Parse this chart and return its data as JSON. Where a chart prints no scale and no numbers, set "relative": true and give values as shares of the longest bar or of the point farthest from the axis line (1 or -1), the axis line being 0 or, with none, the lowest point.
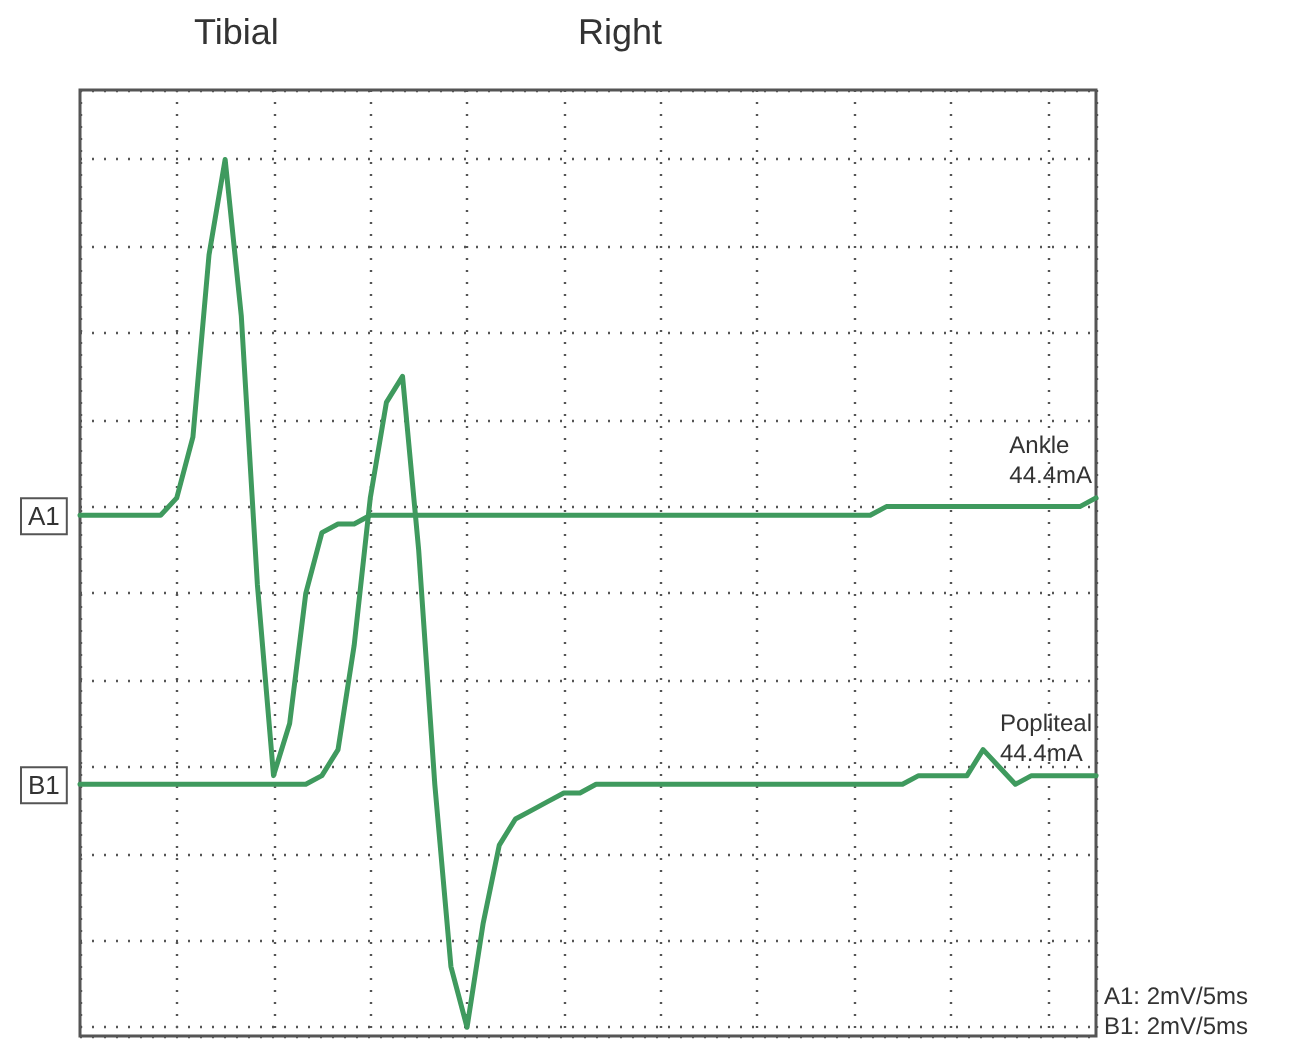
{
  "chart_data": {
    "type": "line",
    "title": "Tibial",
    "subtitle": "Right",
    "relative": true,
    "grid": true,
    "legend": false,
    "marker": "none",
    "line_style": "solid",
    "categories": [
      null,
      null,
      null,
      null,
      null,
      null,
      null,
      null,
      null,
      null,
      null,
      null,
      null,
      null,
      null,
      null,
      null,
      null,
      null,
      null,
      null,
      null,
      null,
      null,
      null,
      null,
      null,
      null,
      null,
      null,
      null,
      null,
      null,
      null,
      null,
      null,
      null,
      null,
      null,
      null,
      null,
      null,
      null,
      null,
      null,
      null,
      null,
      null,
      null,
      null,
      null,
      null,
      null,
      null,
      null,
      null,
      null,
      null,
      null,
      null,
      null,
      null,
      null,
      null
    ],
    "series": [
      {
        "name": "A1",
        "color": "#3f9a5e",
        "values": [
          0.59,
          0.59,
          0.59,
          0.59,
          0.59,
          0.59,
          0.61,
          0.68,
          0.89,
          1,
          0.82,
          0.51,
          0.29,
          0.35,
          0.5,
          0.57,
          0.58,
          0.58,
          0.59,
          0.59,
          0.59,
          0.59,
          0.59,
          0.59,
          0.59,
          0.59,
          0.59,
          0.59,
          0.59,
          0.59,
          0.59,
          0.59,
          0.59,
          0.59,
          0.59,
          0.59,
          0.59,
          0.59,
          0.59,
          0.59,
          0.59,
          0.59,
          0.59,
          0.59,
          0.59,
          0.59,
          0.59,
          0.59,
          0.59,
          0.59,
          0.6,
          0.6,
          0.6,
          0.6,
          0.6,
          0.6,
          0.6,
          0.6,
          0.6,
          0.6,
          0.6,
          0.6,
          0.6,
          0.61
        ]
      },
      {
        "name": "B1",
        "color": "#3f9a5e",
        "values": [
          0.28,
          0.28,
          0.28,
          0.28,
          0.28,
          0.28,
          0.28,
          0.28,
          0.28,
          0.28,
          0.28,
          0.28,
          0.28,
          0.28,
          0.28,
          0.29,
          0.32,
          0.44,
          0.61,
          0.72,
          0.75,
          0.55,
          0.28,
          0.07,
          0,
          0.12,
          0.21,
          0.24,
          0.25,
          0.26,
          0.27,
          0.27,
          0.28,
          0.28,
          0.28,
          0.28,
          0.28,
          0.28,
          0.28,
          0.28,
          0.28,
          0.28,
          0.28,
          0.28,
          0.28,
          0.28,
          0.28,
          0.28,
          0.28,
          0.28,
          0.28,
          0.28,
          0.29,
          0.29,
          0.29,
          0.29,
          0.32,
          0.3,
          0.28,
          0.29,
          0.29,
          0.29,
          0.29,
          0.29
        ]
      }
    ],
    "annotations": [
      "Ankle\n44.4mA",
      "Popliteal\n44.4mA",
      "A1: 2mV/5ms",
      "B1: 2mV/5ms"
    ]
  }
}
